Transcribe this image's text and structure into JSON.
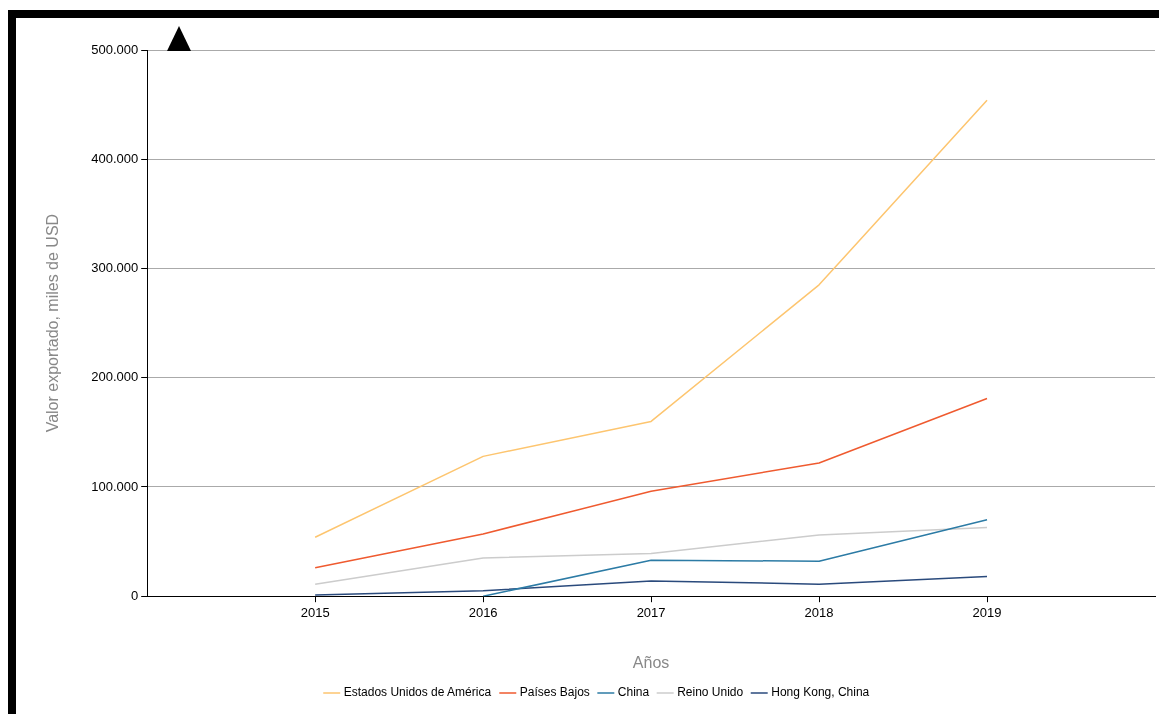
{
  "chart_data": {
    "type": "line",
    "xlabel": "Años",
    "ylabel": "Valor exportado, miles de USD",
    "x": [
      2015,
      2016,
      2017,
      2018,
      2019
    ],
    "xlim": [
      2014,
      2020
    ],
    "xticks": [
      2015,
      2016,
      2017,
      2018,
      2019
    ],
    "ylim": [
      0,
      500000
    ],
    "yticks": [
      0,
      {
        "value": 100000,
        "label": "100.000"
      },
      {
        "value": 200000,
        "label": "200.000"
      },
      {
        "value": 300000,
        "label": "300.000"
      },
      {
        "value": 400000,
        "label": "400.000"
      },
      {
        "value": 500000,
        "label": "500.000"
      }
    ],
    "series": [
      {
        "name": "Estados Unidos de América",
        "color": "#fdc56f",
        "values": [
          54000,
          128000,
          160000,
          285000,
          454000
        ]
      },
      {
        "name": "Países Bajos",
        "color": "#ef5a2f",
        "values": [
          26000,
          57000,
          96000,
          122000,
          181000
        ]
      },
      {
        "name": "China",
        "color": "#2c7ba5",
        "values": [
          null,
          0,
          33000,
          32000,
          70000
        ]
      },
      {
        "name": "Reino Unido",
        "color": "#cccccc",
        "values": [
          11000,
          35000,
          39000,
          56000,
          63000
        ]
      },
      {
        "name": "Hong Kong, China",
        "color": "#2a4a7c",
        "values": [
          1000,
          5000,
          14000,
          11000,
          18000
        ]
      }
    ],
    "grid": "y",
    "legend": "bottom",
    "marker": "none",
    "line_style": "solid"
  }
}
